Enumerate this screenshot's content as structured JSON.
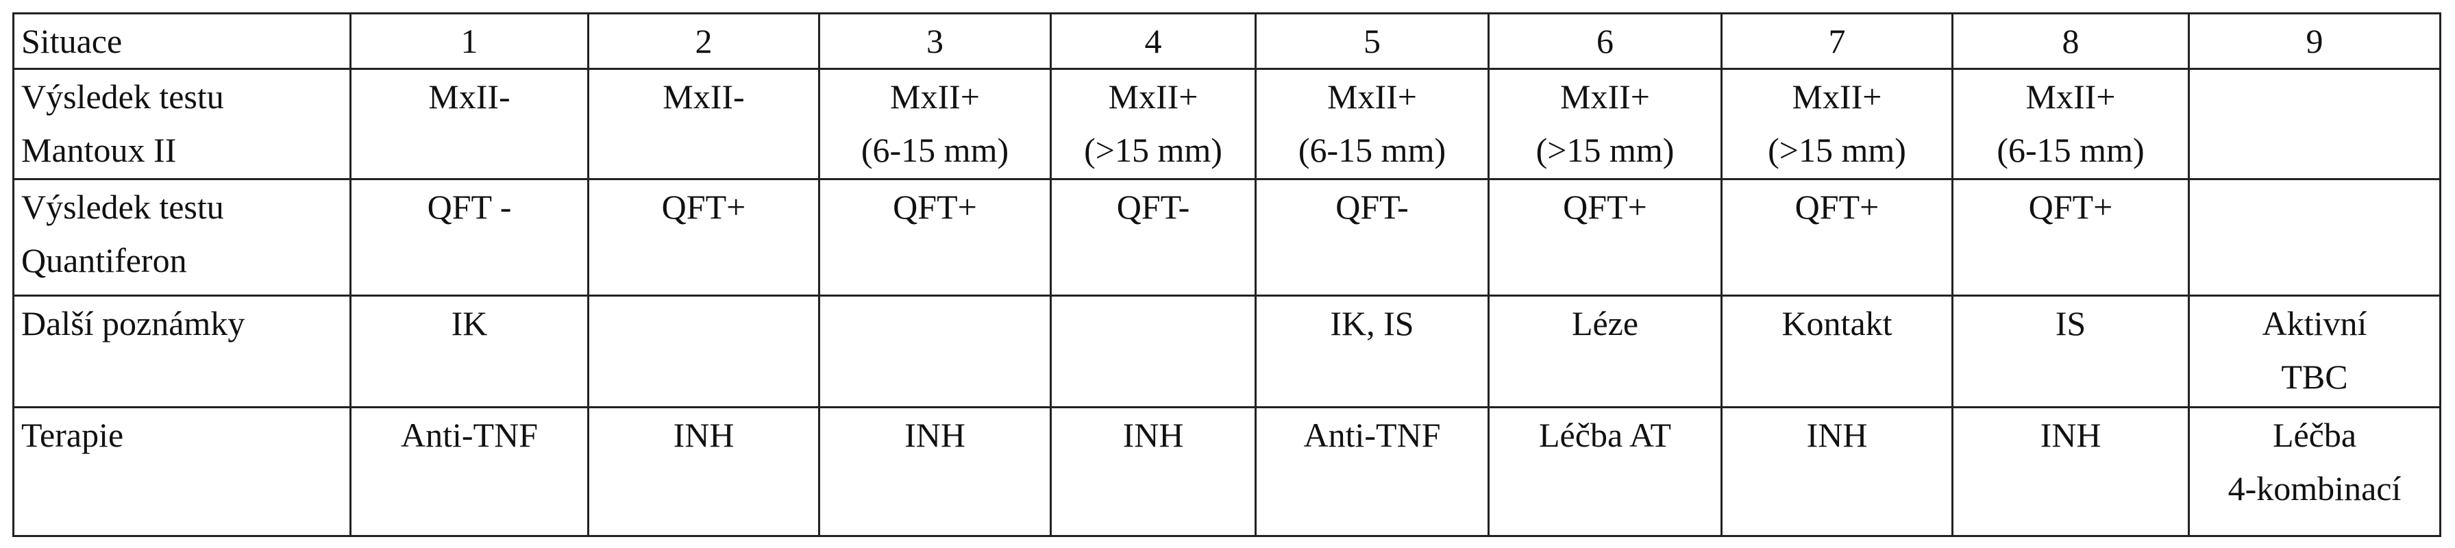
{
  "table": {
    "header": [
      "Situace",
      "1",
      "2",
      "3",
      "4",
      "5",
      "6",
      "7",
      "8",
      "9"
    ],
    "rows": [
      {
        "cells": [
          [
            "Výsledek testu",
            "Mantoux II"
          ],
          [
            "MxII-"
          ],
          [
            "MxII-"
          ],
          [
            "MxII+",
            "(6-15 mm)"
          ],
          [
            "MxII+",
            "(>15 mm)"
          ],
          [
            "MxII+",
            "(6-15 mm)"
          ],
          [
            "MxII+",
            "(>15 mm)"
          ],
          [
            "MxII+",
            "(>15 mm)"
          ],
          [
            "MxII+",
            "(6-15 mm)"
          ],
          []
        ]
      },
      {
        "cells": [
          [
            "Výsledek testu",
            "Quantiferon"
          ],
          [
            "QFT -"
          ],
          [
            "QFT+"
          ],
          [
            "QFT+"
          ],
          [
            "QFT-"
          ],
          [
            "QFT-"
          ],
          [
            "QFT+"
          ],
          [
            "QFT+"
          ],
          [
            "QFT+"
          ],
          []
        ]
      },
      {
        "cells": [
          [
            "Další poznámky"
          ],
          [
            "IK"
          ],
          [],
          [],
          [],
          [
            "IK, IS"
          ],
          [
            "Léze"
          ],
          [
            "Kontakt"
          ],
          [
            "IS"
          ],
          [
            "Aktivní",
            "TBC"
          ]
        ]
      },
      {
        "cells": [
          [
            "Terapie"
          ],
          [
            "Anti-TNF"
          ],
          [
            "INH"
          ],
          [
            "INH"
          ],
          [
            "INH"
          ],
          [
            "Anti-TNF"
          ],
          [
            "Léčba AT"
          ],
          [
            "INH"
          ],
          [
            "INH"
          ],
          [
            "Léčba",
            "4-kombinací"
          ]
        ]
      }
    ]
  }
}
